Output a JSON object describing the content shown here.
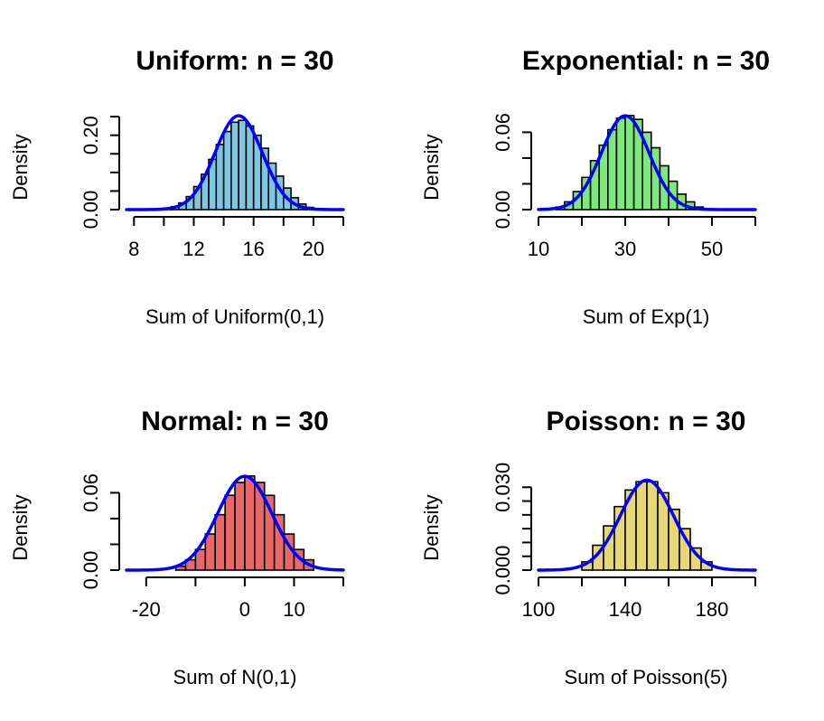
{
  "chart_data": [
    {
      "type": "bar",
      "title": "Uniform: n = 30",
      "xlabel": "Sum of Uniform(0,1)",
      "ylabel": "Density",
      "xlim": [
        7.5,
        22
      ],
      "ylim": [
        0,
        0.26
      ],
      "x_ticks": [
        8,
        10,
        12,
        14,
        16,
        18,
        20,
        22
      ],
      "x_tick_labels": [
        "8",
        "",
        "12",
        "",
        "16",
        "",
        "20",
        ""
      ],
      "y_ticks": [
        0,
        0.05,
        0.1,
        0.15,
        0.2,
        0.25
      ],
      "y_tick_labels": [
        "0.00",
        "",
        "",
        "",
        "0.20",
        ""
      ],
      "bin_edges": [
        10,
        10.5,
        11,
        11.5,
        12,
        12.5,
        13,
        13.5,
        14,
        14.5,
        15,
        15.5,
        16,
        16.5,
        17,
        17.5,
        18,
        18.5,
        19,
        19.5,
        20
      ],
      "densities": [
        0.003,
        0.008,
        0.018,
        0.035,
        0.062,
        0.095,
        0.135,
        0.175,
        0.21,
        0.235,
        0.24,
        0.225,
        0.2,
        0.165,
        0.125,
        0.09,
        0.058,
        0.032,
        0.015,
        0.006
      ],
      "curve": {
        "type": "normal",
        "mean": 15,
        "sd": 1.58
      },
      "bar_color": "#7EC8E3",
      "curve_color": "#0000FF"
    },
    {
      "type": "bar",
      "title": "Exponential: n = 30",
      "xlabel": "Sum of Exp(1)",
      "ylabel": "Density",
      "xlim": [
        10,
        60
      ],
      "ylim": [
        0,
        0.075
      ],
      "x_ticks": [
        10,
        20,
        30,
        40,
        50,
        60
      ],
      "x_tick_labels": [
        "10",
        "",
        "30",
        "",
        "50",
        ""
      ],
      "y_ticks": [
        0,
        0.02,
        0.04,
        0.06
      ],
      "y_tick_labels": [
        "0.00",
        "",
        "",
        "0.06"
      ],
      "bin_edges": [
        14,
        16,
        18,
        20,
        22,
        24,
        26,
        28,
        30,
        32,
        34,
        36,
        38,
        40,
        42,
        44,
        46,
        48
      ],
      "densities": [
        0.002,
        0.006,
        0.014,
        0.025,
        0.038,
        0.05,
        0.062,
        0.071,
        0.073,
        0.07,
        0.06,
        0.048,
        0.034,
        0.022,
        0.012,
        0.006,
        0.002
      ],
      "curve": {
        "type": "normal",
        "mean": 30,
        "sd": 5.48
      },
      "bar_color": "#7CE97A",
      "curve_color": "#0000FF"
    },
    {
      "type": "bar",
      "title": "Normal: n = 30",
      "xlabel": "Sum of N(0,1)",
      "ylabel": "Density",
      "xlim": [
        -24,
        20
      ],
      "ylim": [
        0,
        0.075
      ],
      "x_ticks": [
        -20,
        -10,
        0,
        10,
        20
      ],
      "x_tick_labels": [
        "-20",
        "",
        "0",
        "10",
        ""
      ],
      "y_ticks": [
        0,
        0.02,
        0.04,
        0.06
      ],
      "y_tick_labels": [
        "0.00",
        "",
        "",
        "0.06"
      ],
      "bin_edges": [
        -14,
        -12,
        -10,
        -8,
        -6,
        -4,
        -2,
        0,
        2,
        4,
        6,
        8,
        10,
        12,
        14
      ],
      "densities": [
        0.003,
        0.008,
        0.016,
        0.028,
        0.043,
        0.058,
        0.068,
        0.073,
        0.068,
        0.058,
        0.043,
        0.028,
        0.016,
        0.008
      ],
      "curve": {
        "type": "normal",
        "mean": 0,
        "sd": 5.48
      },
      "bar_color": "#E8686A",
      "curve_color": "#0000FF"
    },
    {
      "type": "bar",
      "title": "Poisson: n = 30",
      "xlabel": "Sum of Poisson(5)",
      "ylabel": "Density",
      "xlim": [
        100,
        200
      ],
      "ylim": [
        0,
        0.035
      ],
      "x_ticks": [
        100,
        120,
        140,
        160,
        180,
        200
      ],
      "x_tick_labels": [
        "100",
        "",
        "140",
        "",
        "180",
        ""
      ],
      "y_ticks": [
        0,
        0.005,
        0.01,
        0.015,
        0.02,
        0.025,
        0.03
      ],
      "y_tick_labels": [
        "0.000",
        "",
        "",
        "",
        "",
        "",
        "0.030"
      ],
      "bin_edges": [
        120,
        125,
        130,
        135,
        140,
        145,
        150,
        155,
        160,
        165,
        170,
        175,
        180
      ],
      "densities": [
        0.003,
        0.009,
        0.016,
        0.023,
        0.029,
        0.032,
        0.032,
        0.028,
        0.022,
        0.015,
        0.008,
        0.003
      ],
      "curve": {
        "type": "normal",
        "mean": 150,
        "sd": 12.25
      },
      "bar_color": "#E8D873",
      "curve_color": "#0000FF"
    }
  ]
}
